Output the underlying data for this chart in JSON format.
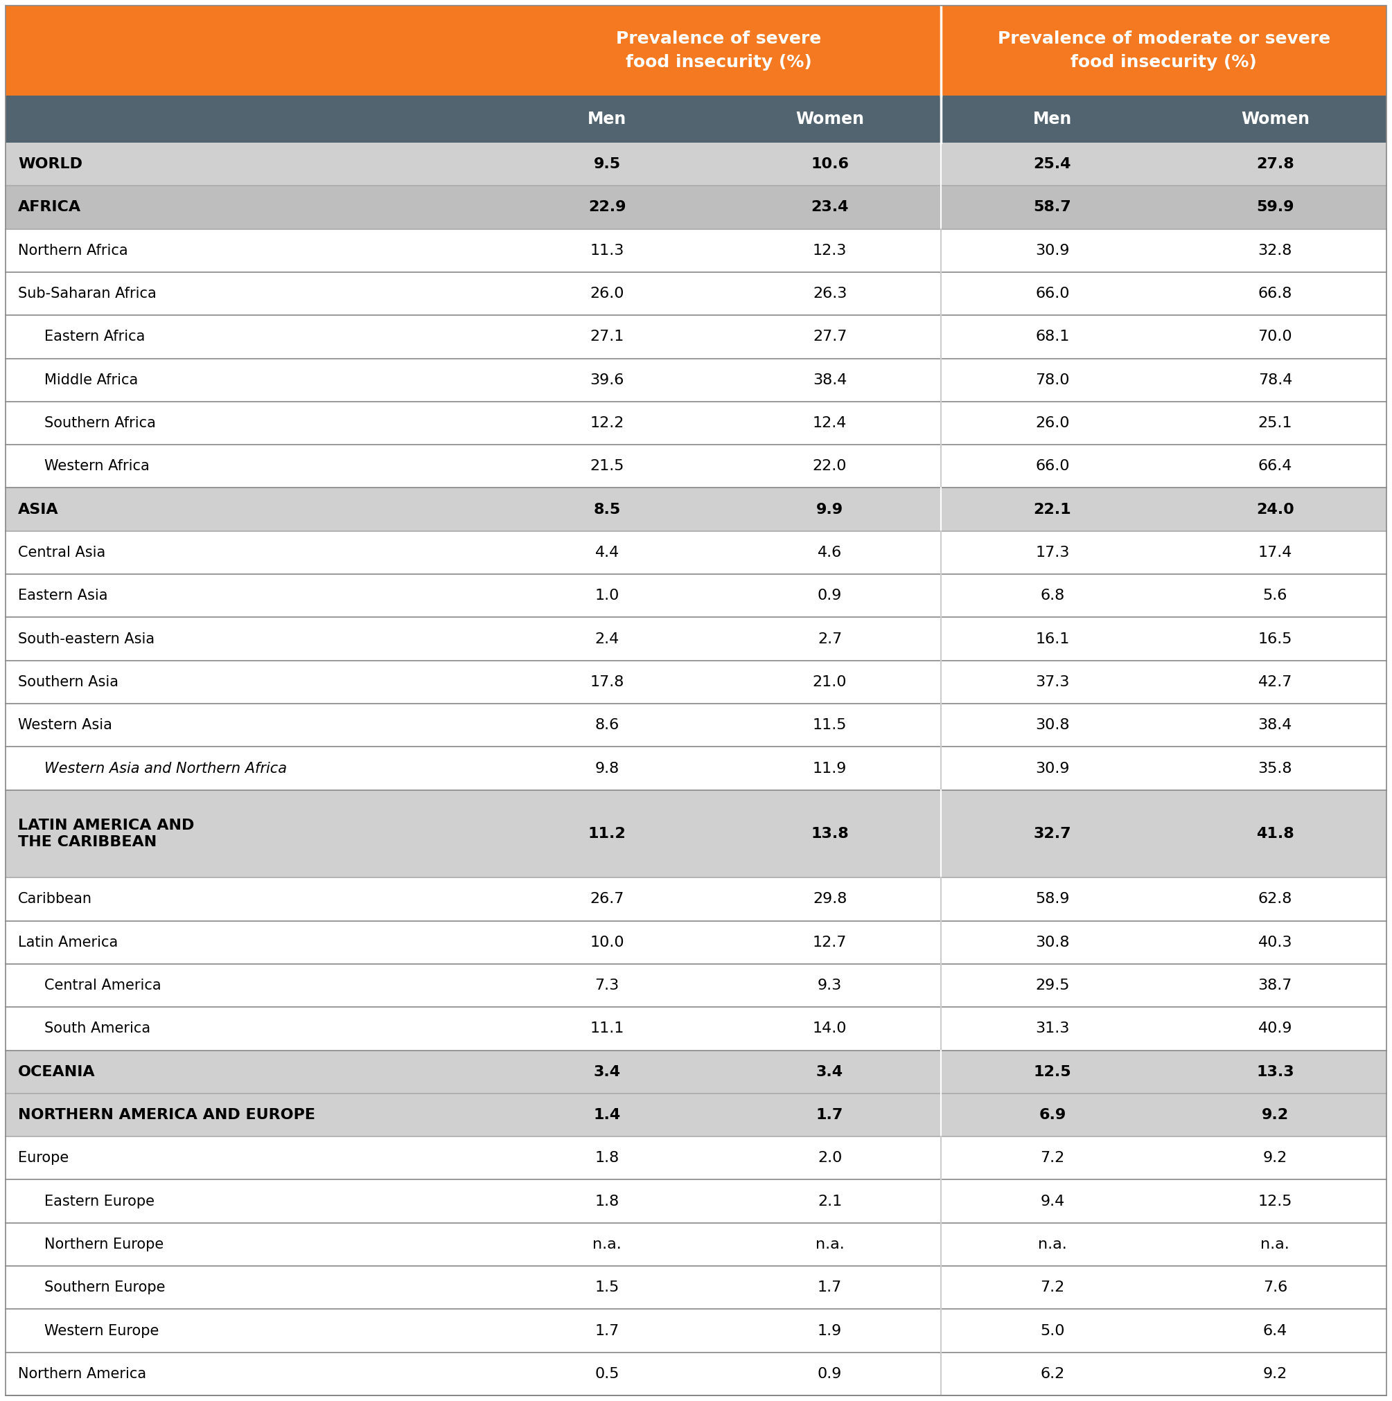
{
  "header1": "Prevalence of severe\nfood insecurity (%)",
  "header2": "Prevalence of moderate or severe\nfood insecurity (%)",
  "col_headers": [
    "Men",
    "Women",
    "Men",
    "Women"
  ],
  "orange_color": "#F47920",
  "dark_teal": "#526470",
  "light_gray": "#D0D0D0",
  "mid_gray": "#BEBEBE",
  "white": "#FFFFFF",
  "divider_color": "#888888",
  "rows": [
    {
      "label": "WORLD",
      "indent": 0,
      "bold": true,
      "italic": false,
      "bg": "light_gray",
      "values": [
        "9.5",
        "10.6",
        "25.4",
        "27.8"
      ]
    },
    {
      "label": "AFRICA",
      "indent": 0,
      "bold": true,
      "italic": false,
      "bg": "mid_gray",
      "values": [
        "22.9",
        "23.4",
        "58.7",
        "59.9"
      ]
    },
    {
      "label": "Northern Africa",
      "indent": 0,
      "bold": false,
      "italic": false,
      "bg": "white",
      "values": [
        "11.3",
        "12.3",
        "30.9",
        "32.8"
      ]
    },
    {
      "label": "Sub-Saharan Africa",
      "indent": 0,
      "bold": false,
      "italic": false,
      "bg": "white",
      "values": [
        "26.0",
        "26.3",
        "66.0",
        "66.8"
      ]
    },
    {
      "label": "Eastern Africa",
      "indent": 1,
      "bold": false,
      "italic": false,
      "bg": "white",
      "values": [
        "27.1",
        "27.7",
        "68.1",
        "70.0"
      ]
    },
    {
      "label": "Middle Africa",
      "indent": 1,
      "bold": false,
      "italic": false,
      "bg": "white",
      "values": [
        "39.6",
        "38.4",
        "78.0",
        "78.4"
      ]
    },
    {
      "label": "Southern Africa",
      "indent": 1,
      "bold": false,
      "italic": false,
      "bg": "white",
      "values": [
        "12.2",
        "12.4",
        "26.0",
        "25.1"
      ]
    },
    {
      "label": "Western Africa",
      "indent": 1,
      "bold": false,
      "italic": false,
      "bg": "white",
      "values": [
        "21.5",
        "22.0",
        "66.0",
        "66.4"
      ]
    },
    {
      "label": "ASIA",
      "indent": 0,
      "bold": true,
      "italic": false,
      "bg": "light_gray",
      "values": [
        "8.5",
        "9.9",
        "22.1",
        "24.0"
      ]
    },
    {
      "label": "Central Asia",
      "indent": 0,
      "bold": false,
      "italic": false,
      "bg": "white",
      "values": [
        "4.4",
        "4.6",
        "17.3",
        "17.4"
      ]
    },
    {
      "label": "Eastern Asia",
      "indent": 0,
      "bold": false,
      "italic": false,
      "bg": "white",
      "values": [
        "1.0",
        "0.9",
        "6.8",
        "5.6"
      ]
    },
    {
      "label": "South-eastern Asia",
      "indent": 0,
      "bold": false,
      "italic": false,
      "bg": "white",
      "values": [
        "2.4",
        "2.7",
        "16.1",
        "16.5"
      ]
    },
    {
      "label": "Southern Asia",
      "indent": 0,
      "bold": false,
      "italic": false,
      "bg": "white",
      "values": [
        "17.8",
        "21.0",
        "37.3",
        "42.7"
      ]
    },
    {
      "label": "Western Asia",
      "indent": 0,
      "bold": false,
      "italic": false,
      "bg": "white",
      "values": [
        "8.6",
        "11.5",
        "30.8",
        "38.4"
      ]
    },
    {
      "label": "Western Asia and Northern Africa",
      "indent": 1,
      "bold": false,
      "italic": true,
      "bg": "white",
      "values": [
        "9.8",
        "11.9",
        "30.9",
        "35.8"
      ]
    },
    {
      "label": "LATIN AMERICA AND\nTHE CARIBBEAN",
      "indent": 0,
      "bold": true,
      "italic": false,
      "bg": "light_gray",
      "values": [
        "11.2",
        "13.8",
        "32.7",
        "41.8"
      ]
    },
    {
      "label": "Caribbean",
      "indent": 0,
      "bold": false,
      "italic": false,
      "bg": "white",
      "values": [
        "26.7",
        "29.8",
        "58.9",
        "62.8"
      ]
    },
    {
      "label": "Latin America",
      "indent": 0,
      "bold": false,
      "italic": false,
      "bg": "white",
      "values": [
        "10.0",
        "12.7",
        "30.8",
        "40.3"
      ]
    },
    {
      "label": "Central America",
      "indent": 1,
      "bold": false,
      "italic": false,
      "bg": "white",
      "values": [
        "7.3",
        "9.3",
        "29.5",
        "38.7"
      ]
    },
    {
      "label": "South America",
      "indent": 1,
      "bold": false,
      "italic": false,
      "bg": "white",
      "values": [
        "11.1",
        "14.0",
        "31.3",
        "40.9"
      ]
    },
    {
      "label": "OCEANIA",
      "indent": 0,
      "bold": true,
      "italic": false,
      "bg": "light_gray",
      "values": [
        "3.4",
        "3.4",
        "12.5",
        "13.3"
      ]
    },
    {
      "label": "NORTHERN AMERICA AND EUROPE",
      "indent": 0,
      "bold": true,
      "italic": false,
      "bg": "light_gray",
      "values": [
        "1.4",
        "1.7",
        "6.9",
        "9.2"
      ]
    },
    {
      "label": "Europe",
      "indent": 0,
      "bold": false,
      "italic": false,
      "bg": "white",
      "values": [
        "1.8",
        "2.0",
        "7.2",
        "9.2"
      ]
    },
    {
      "label": "Eastern Europe",
      "indent": 1,
      "bold": false,
      "italic": false,
      "bg": "white",
      "values": [
        "1.8",
        "2.1",
        "9.4",
        "12.5"
      ]
    },
    {
      "label": "Northern Europe",
      "indent": 1,
      "bold": false,
      "italic": false,
      "bg": "white",
      "values": [
        "n.a.",
        "n.a.",
        "n.a.",
        "n.a."
      ]
    },
    {
      "label": "Southern Europe",
      "indent": 1,
      "bold": false,
      "italic": false,
      "bg": "white",
      "values": [
        "1.5",
        "1.7",
        "7.2",
        "7.6"
      ]
    },
    {
      "label": "Western Europe",
      "indent": 1,
      "bold": false,
      "italic": false,
      "bg": "white",
      "values": [
        "1.7",
        "1.9",
        "5.0",
        "6.4"
      ]
    },
    {
      "label": "Northern America",
      "indent": 0,
      "bold": false,
      "italic": false,
      "bg": "white",
      "values": [
        "0.5",
        "0.9",
        "6.2",
        "9.2"
      ]
    }
  ],
  "fig_width": 20.09,
  "fig_height": 20.23
}
